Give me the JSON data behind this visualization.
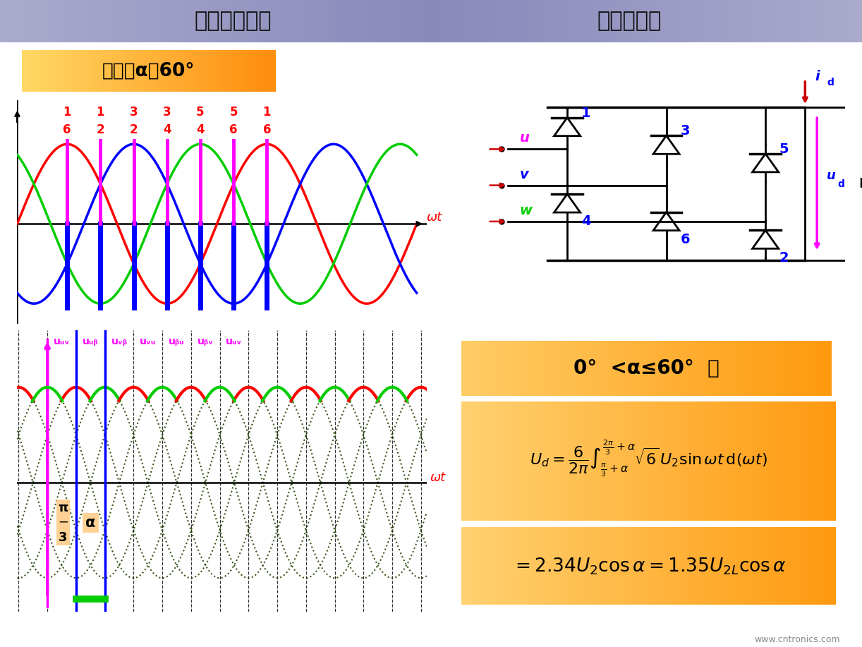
{
  "title_left": "三相桥式全控",
  "title_right": "电阻性负载",
  "bg_color": "#ffffff",
  "control_angle_text": "控制角α＝60°",
  "upper_box_border": "#00cccc",
  "lower_box_border": "#00cccc",
  "phase_red": "#ff0000",
  "phase_blue": "#0000ff",
  "phase_green": "#00cc00",
  "firing_color": "#ff00ff",
  "wt_color": "#ff0000",
  "phase_nums_top": [
    "1",
    "1",
    "3",
    "3",
    "5",
    "5",
    "1"
  ],
  "phase_nums_bot": [
    "6",
    "2",
    "2",
    "4",
    "4",
    "6",
    "6"
  ],
  "formula_bg_start": "#ffcc66",
  "formula_bg_end": "#ffeecc",
  "formula_border": "#00cc00",
  "cond_bg_start": "#ffcc66",
  "cond_bg_end": "#ffeecc",
  "cond_border": "#00cc00",
  "website": "www.cntronics.com",
  "alpha_deg": 60,
  "title_bg": "#9999bb"
}
